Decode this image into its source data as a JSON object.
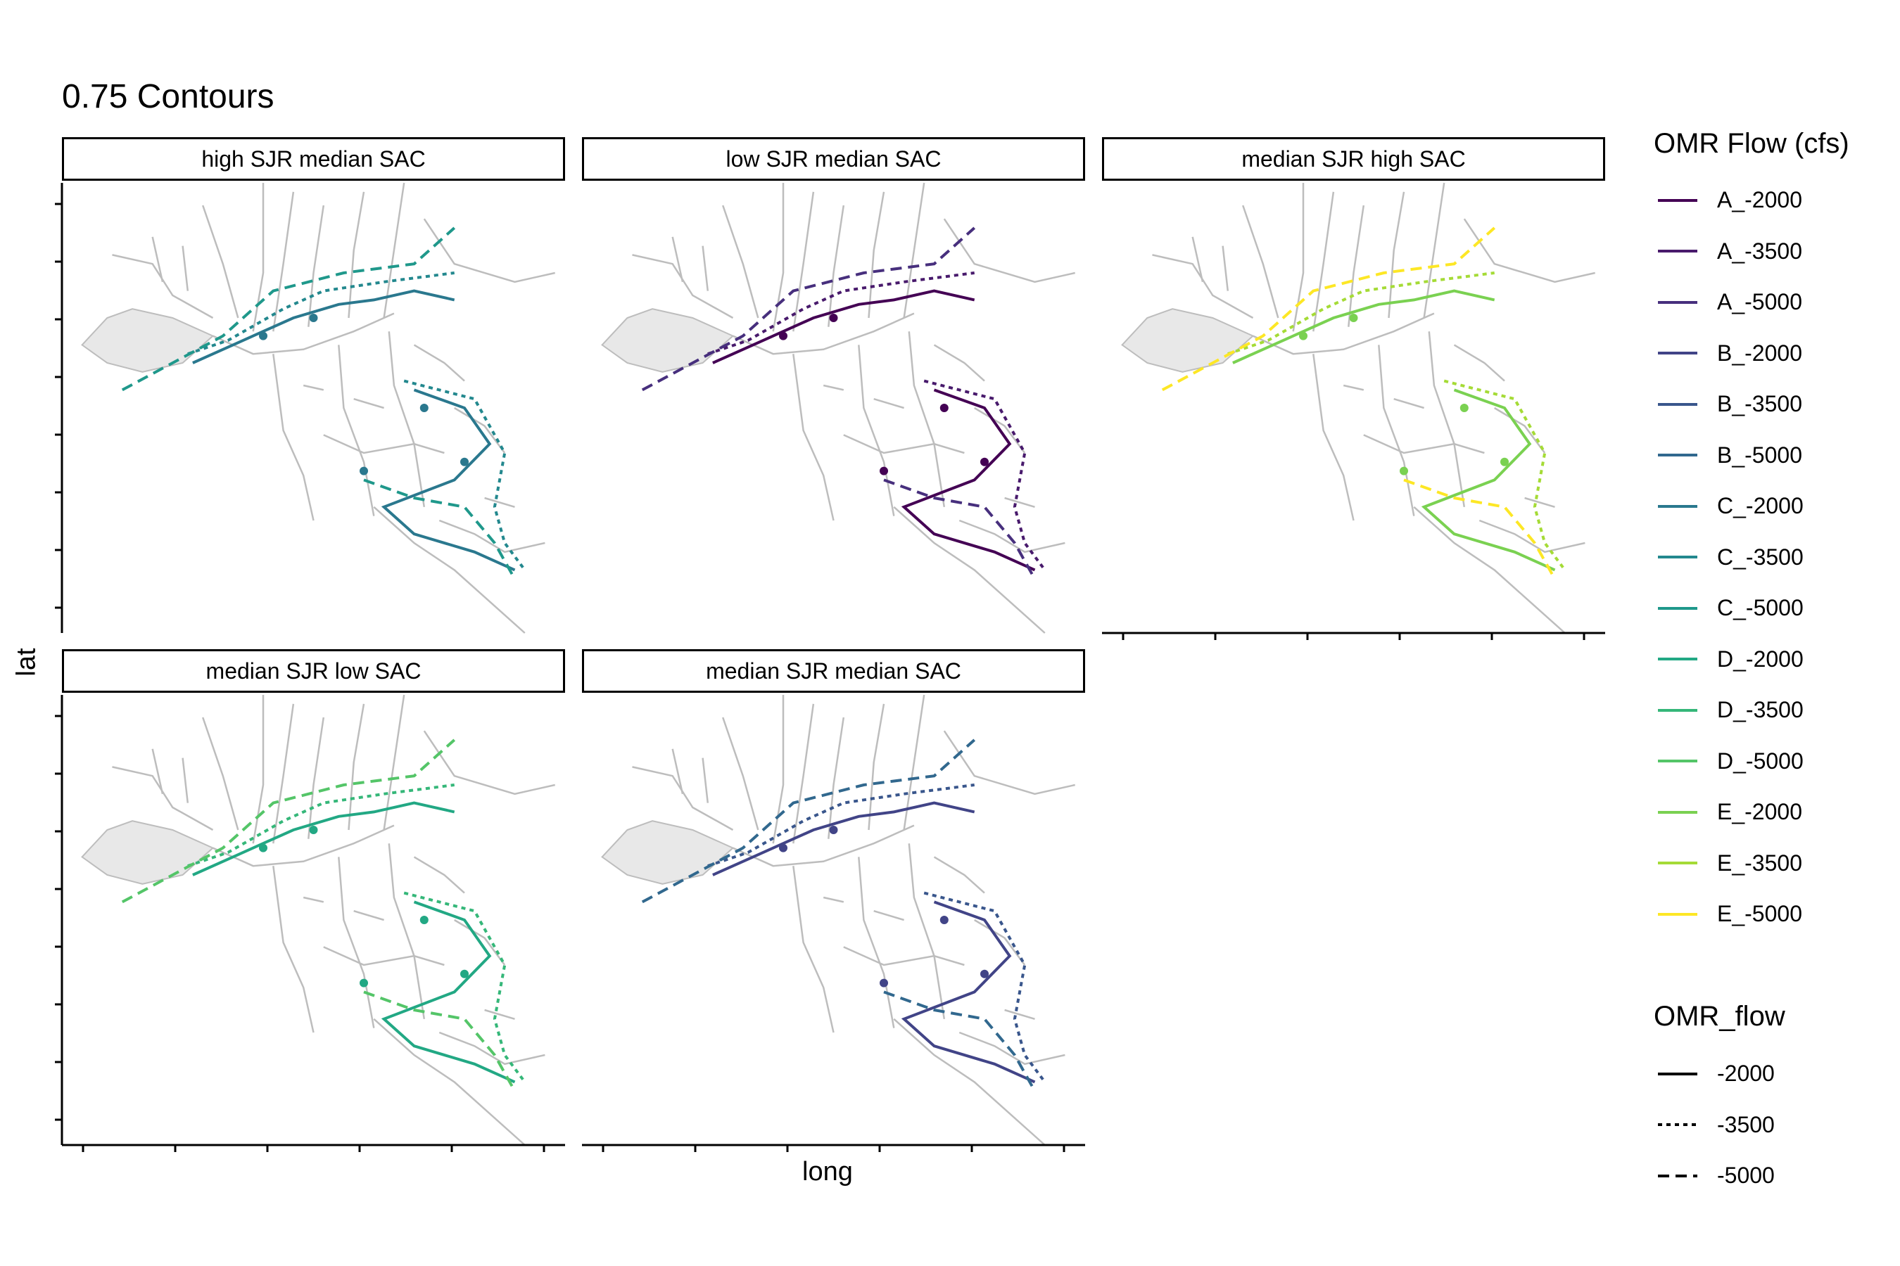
{
  "title": "0.75 Contours",
  "x_axis_title": "long",
  "y_axis_title": "lat",
  "panels": [
    {
      "label": "high SJR median SAC",
      "scenarios": [
        "C_-2000",
        "C_-3500",
        "C_-5000"
      ]
    },
    {
      "label": "low SJR median SAC",
      "scenarios": [
        "A_-2000",
        "A_-3500",
        "A_-5000"
      ]
    },
    {
      "label": "median SJR high SAC",
      "scenarios": [
        "E_-2000",
        "E_-3500",
        "E_-5000"
      ]
    },
    {
      "label": "median SJR low SAC",
      "scenarios": [
        "D_-2000",
        "D_-3500",
        "D_-5000"
      ]
    },
    {
      "label": "median SJR median SAC",
      "scenarios": [
        "B_-2000",
        "B_-3500",
        "B_-5000"
      ]
    }
  ],
  "legend_color": {
    "title": "OMR Flow (cfs)",
    "items": [
      {
        "label": "A_-2000",
        "color": "#440154"
      },
      {
        "label": "A_-3500",
        "color": "#481A6C"
      },
      {
        "label": "A_-5000",
        "color": "#472F7D"
      },
      {
        "label": "B_-2000",
        "color": "#414487"
      },
      {
        "label": "B_-3500",
        "color": "#39568C"
      },
      {
        "label": "B_-5000",
        "color": "#31688E"
      },
      {
        "label": "C_-2000",
        "color": "#2A788E"
      },
      {
        "label": "C_-3500",
        "color": "#23888E"
      },
      {
        "label": "C_-5000",
        "color": "#1F988B"
      },
      {
        "label": "D_-2000",
        "color": "#22A884"
      },
      {
        "label": "D_-3500",
        "color": "#35B779"
      },
      {
        "label": "D_-5000",
        "color": "#54C568"
      },
      {
        "label": "E_-2000",
        "color": "#7AD151"
      },
      {
        "label": "E_-3500",
        "color": "#A5DB36"
      },
      {
        "label": "E_-5000",
        "color": "#FDE725"
      }
    ]
  },
  "legend_linetype": {
    "title": "OMR_flow",
    "items": [
      {
        "label": "-2000",
        "linetype": "solid"
      },
      {
        "label": "-3500",
        "linetype": "dotted"
      },
      {
        "label": "-5000",
        "linetype": "dashed"
      }
    ]
  },
  "colors": {
    "basemap_water": "#BDBDBD",
    "basemap_fill": "#E8E8E8"
  }
}
